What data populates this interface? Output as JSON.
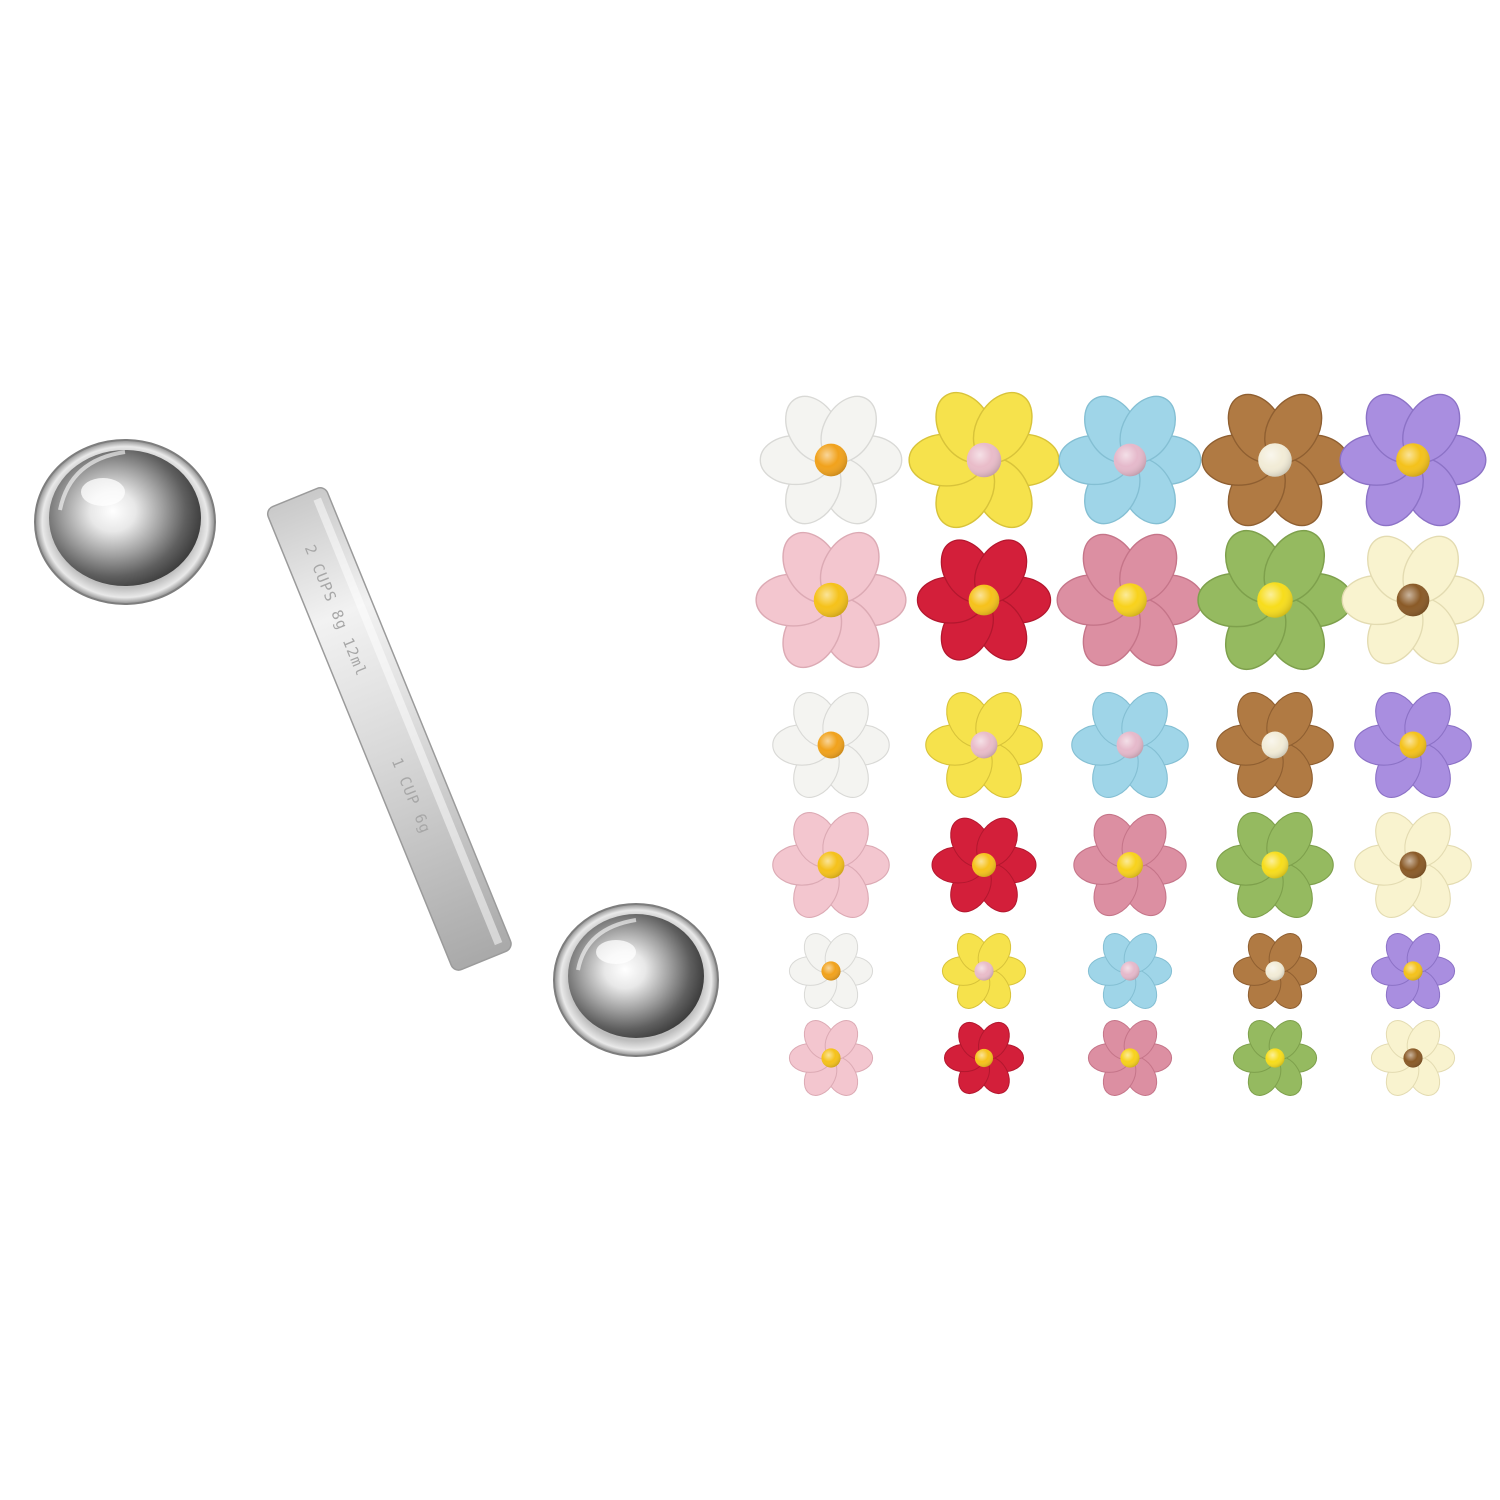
{
  "spoon": {
    "engraving_top": "2 CUPS 8g 12ml",
    "engraving_bottom": "1 CUP 6g"
  },
  "flowers": {
    "rows": [
      [
        "white",
        "yellow",
        "blue",
        "brown",
        "purple"
      ],
      [
        "pink",
        "red",
        "rose",
        "green",
        "cream"
      ],
      [
        "white",
        "yellow",
        "blue",
        "brown",
        "purple"
      ],
      [
        "pink",
        "red",
        "rose",
        "green",
        "cream"
      ],
      [
        "white",
        "yellow",
        "blue",
        "brown",
        "purple"
      ],
      [
        "pink",
        "red",
        "rose",
        "green",
        "cream"
      ]
    ],
    "palette": {
      "white": {
        "petal": "#f4f4f1",
        "edge": "#d9d9d6",
        "center": "#f1a21c"
      },
      "yellow": {
        "petal": "#f6e24c",
        "edge": "#d8c33a",
        "center": "#e9bcc9"
      },
      "blue": {
        "petal": "#9fd5e8",
        "edge": "#84bfd3",
        "center": "#e5b9cb"
      },
      "brown": {
        "petal": "#b07a43",
        "edge": "#8f5f31",
        "center": "#f2ecd7"
      },
      "purple": {
        "petal": "#a98ee0",
        "edge": "#8c72c6",
        "center": "#f4c21b"
      },
      "pink": {
        "petal": "#f3c6cf",
        "edge": "#dcaab4",
        "center": "#f5c21a"
      },
      "red": {
        "petal": "#d31f3a",
        "edge": "#b3172e",
        "center": "#f6c21b"
      },
      "rose": {
        "petal": "#dc8fa2",
        "edge": "#c57589",
        "center": "#f8d21c"
      },
      "green": {
        "petal": "#95ba60",
        "edge": "#7ea04c",
        "center": "#f7dd1c"
      },
      "cream": {
        "petal": "#f9f3cf",
        "edge": "#e3dbb1",
        "center": "#8a5a27"
      }
    }
  }
}
